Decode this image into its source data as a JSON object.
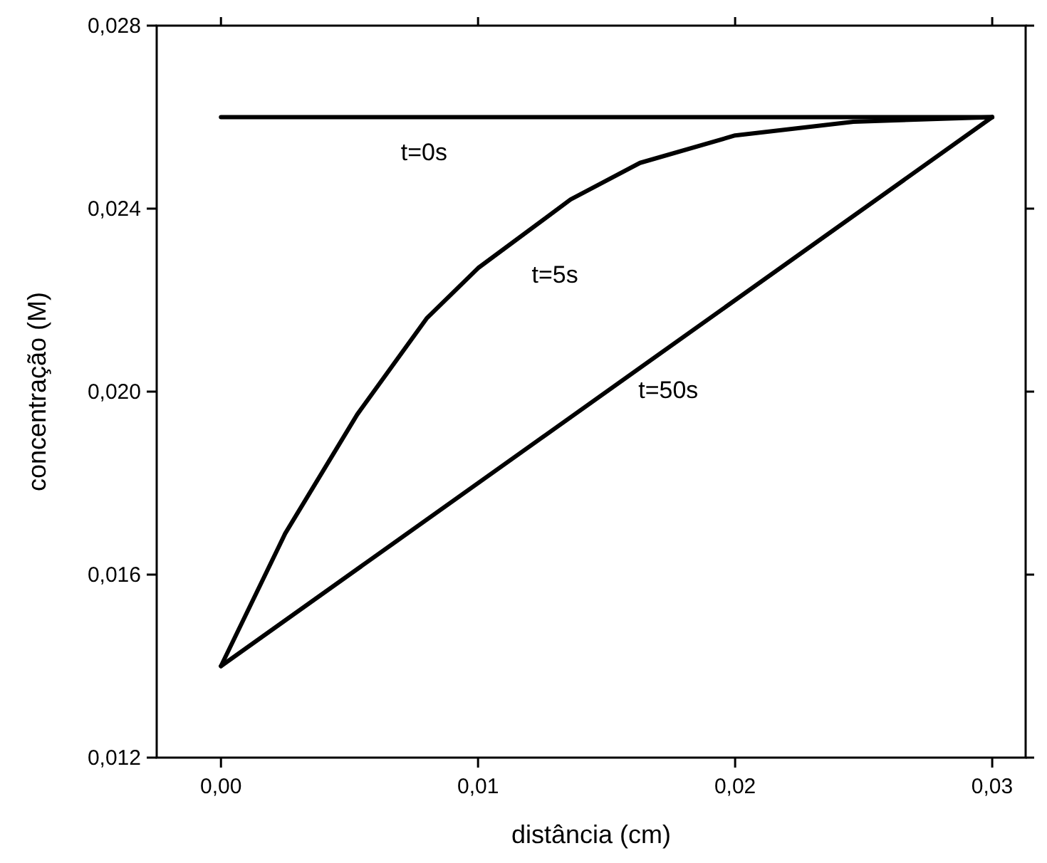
{
  "chart_data": {
    "type": "line",
    "xlabel": "distância (cm)",
    "ylabel": "concentração (M)",
    "xlim": [
      -0.0025,
      0.0313
    ],
    "ylim": [
      0.012,
      0.028
    ],
    "xticks": [
      {
        "value": 0,
        "label": "0,00"
      },
      {
        "value": 0.01,
        "label": "0,01"
      },
      {
        "value": 0.02,
        "label": "0,02"
      },
      {
        "value": 0.03,
        "label": "0,03"
      }
    ],
    "yticks": [
      {
        "value": 0.012,
        "label": "0,012"
      },
      {
        "value": 0.016,
        "label": "0,016"
      },
      {
        "value": 0.02,
        "label": "0,020"
      },
      {
        "value": 0.024,
        "label": "0,024"
      },
      {
        "value": 0.028,
        "label": "0,028"
      }
    ],
    "series": [
      {
        "name": "t=0s",
        "color": "#000000",
        "x": [
          0,
          0.03
        ],
        "values": [
          0.026,
          0.026
        ]
      },
      {
        "name": "t=5s",
        "color": "#000000",
        "x": [
          0,
          0.0025,
          0.0053,
          0.008,
          0.01,
          0.0136,
          0.0163,
          0.02,
          0.0246,
          0.03
        ],
        "values": [
          0.014,
          0.0169,
          0.0195,
          0.0216,
          0.0227,
          0.0242,
          0.025,
          0.0256,
          0.0259,
          0.026
        ]
      },
      {
        "name": "t=50s",
        "color": "#000000",
        "x": [
          0,
          0.03
        ],
        "values": [
          0.014,
          0.026
        ]
      }
    ],
    "grid": false,
    "marker": "none",
    "line_style": "solid"
  }
}
